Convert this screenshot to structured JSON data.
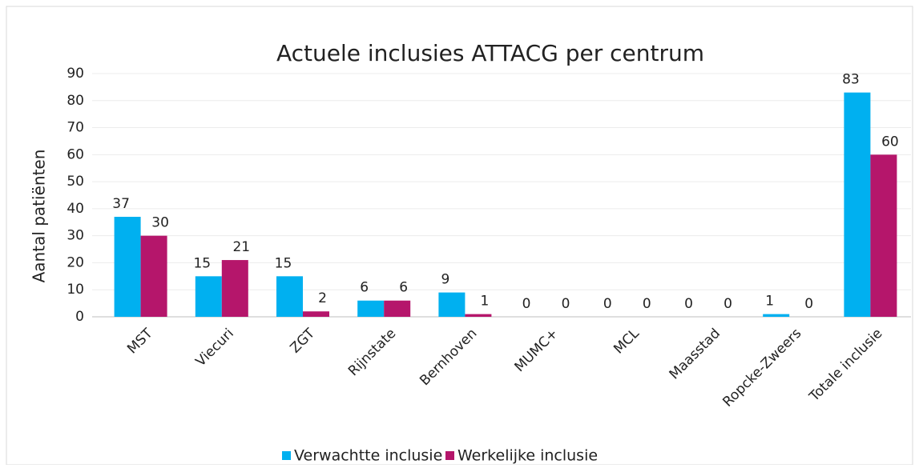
{
  "chart_data": {
    "type": "bar",
    "title": "Actuele inclusies ATTACG per centrum",
    "y_label": "Aantal patiënten",
    "categories": [
      "MST",
      "Viecuri",
      "ZGT",
      "Rijnstate",
      "Bernhoven",
      "MUMC+",
      "MCL",
      "Maasstad",
      "Ropcke-Zweers",
      "Totale inclusie"
    ],
    "series": [
      {
        "name": "Verwachtte inclusie",
        "color": "#00b0f0",
        "values": [
          37,
          15,
          15,
          6,
          9,
          0,
          0,
          0,
          1,
          83
        ]
      },
      {
        "name": "Werkelijke inclusie",
        "color": "#b5166b",
        "values": [
          30,
          21,
          2,
          6,
          1,
          0,
          0,
          0,
          0,
          60
        ]
      }
    ],
    "ylim": [
      0,
      90
    ],
    "yticks": [
      0,
      10,
      20,
      30,
      40,
      50,
      60,
      70,
      80,
      90
    ],
    "grid": true,
    "legend": "bottom"
  }
}
